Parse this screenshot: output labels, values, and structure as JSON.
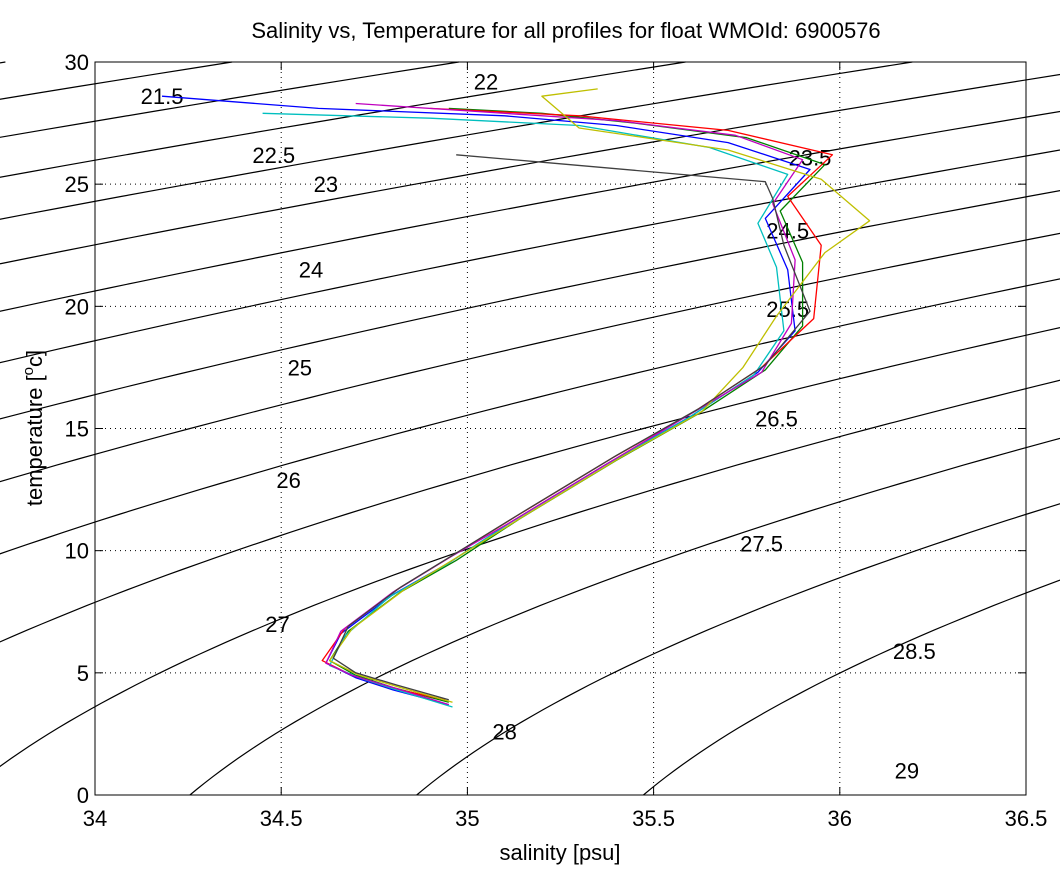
{
  "chart_data": {
    "type": "line",
    "title": "Salinity vs, Temperature for all profiles for float WMOId: 6900576",
    "xlabel": "salinity [psu]",
    "ylabel_main": "temperature [",
    "ylabel_sup": "o",
    "ylabel_end": "c]",
    "xlim": [
      34,
      36.5
    ],
    "ylim": [
      0,
      30
    ],
    "xticks": [
      34,
      34.5,
      35,
      35.5,
      36,
      36.5
    ],
    "xtick_labels": [
      "34",
      "34.5",
      "35",
      "35.5",
      "36",
      "36.5"
    ],
    "yticks": [
      0,
      5,
      10,
      15,
      20,
      25,
      30
    ],
    "ytick_labels": [
      "0",
      "5",
      "10",
      "15",
      "20",
      "25",
      "30"
    ],
    "grid": true,
    "density_contours": [
      21,
      21.5,
      22,
      22.5,
      23,
      23.5,
      24,
      24.5,
      25,
      25.5,
      26,
      26.5,
      27,
      27.5,
      28,
      28.5,
      29
    ],
    "contour_labels": [
      {
        "text": "21.5",
        "x": 34.18,
        "y": 28.6
      },
      {
        "text": "22",
        "x": 35.05,
        "y": 29.2
      },
      {
        "text": "22.5",
        "x": 34.48,
        "y": 26.2
      },
      {
        "text": "23",
        "x": 34.62,
        "y": 25.0
      },
      {
        "text": "23.5",
        "x": 35.92,
        "y": 26.1
      },
      {
        "text": "24",
        "x": 34.58,
        "y": 21.5
      },
      {
        "text": "24.5",
        "x": 35.86,
        "y": 23.1
      },
      {
        "text": "25",
        "x": 34.55,
        "y": 17.5
      },
      {
        "text": "25.5",
        "x": 35.86,
        "y": 19.9
      },
      {
        "text": "26",
        "x": 34.52,
        "y": 12.9
      },
      {
        "text": "26.5",
        "x": 35.83,
        "y": 15.4
      },
      {
        "text": "27",
        "x": 34.49,
        "y": 7.0
      },
      {
        "text": "27.5",
        "x": 35.79,
        "y": 10.3
      },
      {
        "text": "28",
        "x": 35.1,
        "y": 2.6
      },
      {
        "text": "28.5",
        "x": 36.2,
        "y": 5.9
      },
      {
        "text": "29",
        "x": 36.18,
        "y": 1.0
      }
    ],
    "series": [
      {
        "color": "#0000ff",
        "points": [
          [
            34.95,
            3.7
          ],
          [
            34.8,
            4.3
          ],
          [
            34.7,
            4.8
          ],
          [
            34.62,
            5.4
          ],
          [
            34.66,
            6.6
          ],
          [
            34.8,
            8.2
          ],
          [
            34.95,
            9.5
          ],
          [
            35.12,
            11.2
          ],
          [
            35.38,
            13.6
          ],
          [
            35.6,
            15.5
          ],
          [
            35.78,
            17.3
          ],
          [
            35.88,
            19.0
          ],
          [
            35.86,
            21.5
          ],
          [
            35.8,
            23.6
          ],
          [
            35.92,
            25.6
          ],
          [
            35.7,
            26.7
          ],
          [
            35.4,
            27.4
          ],
          [
            35.1,
            27.8
          ],
          [
            34.6,
            28.1
          ],
          [
            34.18,
            28.6
          ]
        ]
      },
      {
        "color": "#008000",
        "points": [
          [
            34.95,
            3.8
          ],
          [
            34.8,
            4.4
          ],
          [
            34.7,
            4.9
          ],
          [
            34.63,
            5.5
          ],
          [
            34.68,
            6.7
          ],
          [
            34.82,
            8.3
          ],
          [
            34.97,
            9.6
          ],
          [
            35.14,
            11.3
          ],
          [
            35.4,
            13.7
          ],
          [
            35.62,
            15.6
          ],
          [
            35.8,
            17.4
          ],
          [
            35.9,
            19.2
          ],
          [
            35.9,
            21.8
          ],
          [
            35.84,
            23.9
          ],
          [
            35.96,
            25.8
          ],
          [
            35.75,
            26.9
          ],
          [
            35.45,
            27.5
          ],
          [
            35.2,
            27.9
          ],
          [
            34.95,
            28.1
          ]
        ]
      },
      {
        "color": "#ff0000",
        "points": [
          [
            34.94,
            3.9
          ],
          [
            34.79,
            4.4
          ],
          [
            34.69,
            4.9
          ],
          [
            34.61,
            5.5
          ],
          [
            34.67,
            6.8
          ],
          [
            34.81,
            8.4
          ],
          [
            34.96,
            9.8
          ],
          [
            35.13,
            11.4
          ],
          [
            35.39,
            13.8
          ],
          [
            35.61,
            15.7
          ],
          [
            35.79,
            17.5
          ],
          [
            35.93,
            19.5
          ],
          [
            35.95,
            22.5
          ],
          [
            35.86,
            24.5
          ],
          [
            35.98,
            26.2
          ],
          [
            35.7,
            27.2
          ],
          [
            35.3,
            27.8
          ],
          [
            34.9,
            28.1
          ]
        ]
      },
      {
        "color": "#00bfbf",
        "points": [
          [
            34.96,
            3.6
          ],
          [
            34.81,
            4.3
          ],
          [
            34.71,
            4.8
          ],
          [
            34.63,
            5.3
          ],
          [
            34.67,
            6.5
          ],
          [
            34.79,
            8.1
          ],
          [
            34.94,
            9.4
          ],
          [
            35.11,
            11.1
          ],
          [
            35.37,
            13.5
          ],
          [
            35.59,
            15.4
          ],
          [
            35.77,
            17.2
          ],
          [
            35.85,
            19.0
          ],
          [
            35.83,
            21.6
          ],
          [
            35.78,
            23.4
          ],
          [
            35.86,
            25.4
          ],
          [
            35.65,
            26.5
          ],
          [
            35.3,
            27.4
          ],
          [
            34.9,
            27.7
          ],
          [
            34.45,
            27.9
          ]
        ]
      },
      {
        "color": "#bf00bf",
        "points": [
          [
            34.95,
            3.7
          ],
          [
            34.8,
            4.4
          ],
          [
            34.69,
            4.9
          ],
          [
            34.62,
            5.4
          ],
          [
            34.66,
            6.7
          ],
          [
            34.8,
            8.3
          ],
          [
            34.95,
            9.7
          ],
          [
            35.12,
            11.2
          ],
          [
            35.38,
            13.6
          ],
          [
            35.6,
            15.6
          ],
          [
            35.79,
            17.3
          ],
          [
            35.87,
            19.3
          ],
          [
            35.88,
            21.9
          ],
          [
            35.82,
            24.2
          ],
          [
            35.9,
            26.0
          ],
          [
            35.72,
            27.0
          ],
          [
            35.4,
            27.6
          ],
          [
            35.0,
            28.0
          ],
          [
            34.7,
            28.3
          ]
        ]
      },
      {
        "color": "#bfbf00",
        "points": [
          [
            34.96,
            3.8
          ],
          [
            34.82,
            4.4
          ],
          [
            34.71,
            4.9
          ],
          [
            34.63,
            5.5
          ],
          [
            34.69,
            6.8
          ],
          [
            34.83,
            8.4
          ],
          [
            34.98,
            9.8
          ],
          [
            35.15,
            11.4
          ],
          [
            35.41,
            13.8
          ],
          [
            35.63,
            15.7
          ],
          [
            35.74,
            17.5
          ],
          [
            35.83,
            19.6
          ],
          [
            35.96,
            22.2
          ],
          [
            36.08,
            23.5
          ],
          [
            35.95,
            25.2
          ],
          [
            35.7,
            26.4
          ],
          [
            35.3,
            27.3
          ],
          [
            35.2,
            28.6
          ],
          [
            35.35,
            28.9
          ]
        ]
      },
      {
        "color": "#404040",
        "points": [
          [
            34.95,
            3.9
          ],
          [
            34.81,
            4.5
          ],
          [
            34.7,
            5.0
          ],
          [
            34.64,
            5.6
          ],
          [
            34.68,
            6.9
          ],
          [
            34.82,
            8.5
          ],
          [
            34.97,
            9.9
          ],
          [
            35.14,
            11.5
          ],
          [
            35.4,
            13.9
          ],
          [
            35.62,
            15.8
          ],
          [
            35.8,
            17.6
          ],
          [
            35.92,
            19.8
          ],
          [
            35.85,
            22.5
          ],
          [
            35.82,
            24.4
          ],
          [
            35.8,
            25.1
          ],
          [
            35.5,
            25.5
          ],
          [
            35.2,
            25.9
          ],
          [
            34.97,
            26.2
          ]
        ]
      }
    ]
  }
}
